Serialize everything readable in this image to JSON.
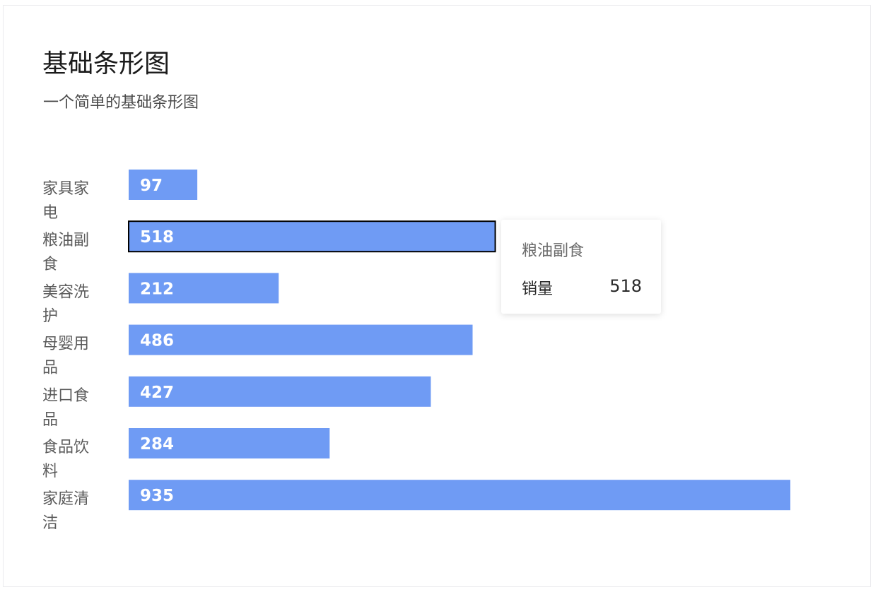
{
  "chart_data": {
    "type": "bar",
    "orientation": "horizontal",
    "title": "基础条形图",
    "subtitle": "一个简单的基础条形图",
    "categories": [
      "家具家电",
      "粮油副食",
      "美容洗护",
      "母婴用品",
      "进口食品",
      "食品饮料",
      "家庭清洁"
    ],
    "series": [
      {
        "name": "销量",
        "values": [
          97,
          518,
          212,
          486,
          427,
          284,
          935
        ]
      }
    ],
    "xlim": [
      0,
      935
    ],
    "grid": false,
    "legend": "none",
    "bar_color": "#6f9bf4",
    "highlighted_category": "粮油副食"
  },
  "tooltip": {
    "title": "粮油副食",
    "series_name": "销量",
    "value": "518"
  }
}
